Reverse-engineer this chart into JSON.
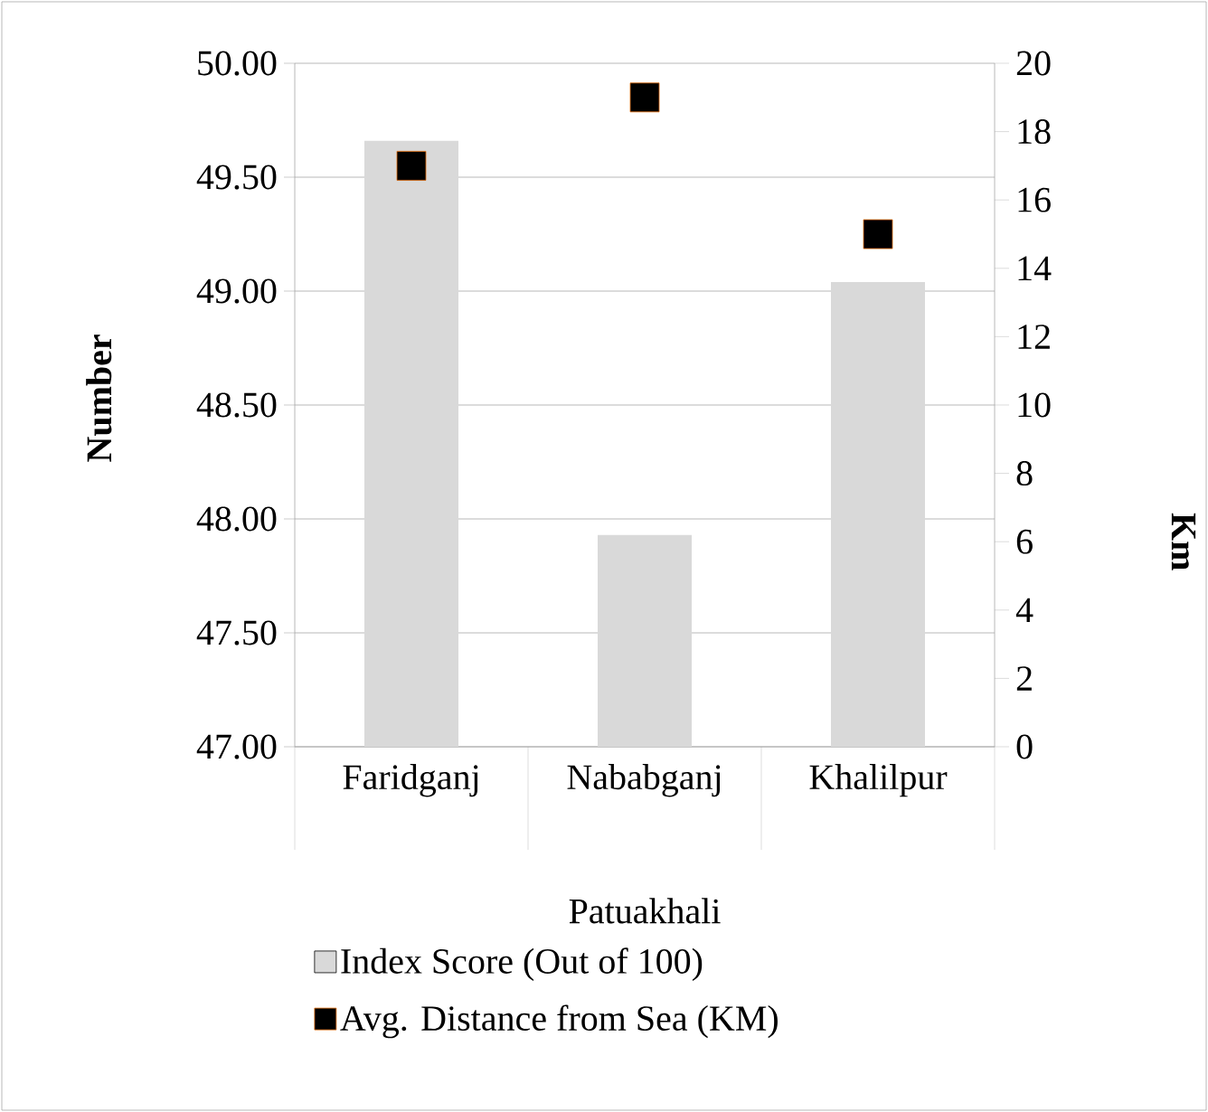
{
  "chart_data": {
    "type": "bar",
    "categories": [
      "Faridganj",
      "Nababganj",
      "Khalilpur"
    ],
    "xlabel": "Patuakhali",
    "ylabel": "Number",
    "y2label": "Km",
    "series": [
      {
        "name": "Index Score (Out of 100)",
        "color": "#d9d9d9",
        "values": [
          49.66,
          47.93,
          49.04
        ]
      },
      {
        "name": "Avg. Distance from Sea (KM)",
        "type": "scatter",
        "axis": "y2",
        "marker": "square",
        "color": "#000000",
        "values": [
          17,
          19,
          15
        ]
      }
    ],
    "ylim": [
      47,
      50
    ],
    "yticks": [
      {
        "value": 47,
        "label": "47.00"
      },
      {
        "value": 47.5,
        "label": "47.50"
      },
      {
        "value": 48,
        "label": "48.00"
      },
      {
        "value": 48.5,
        "label": "48.50"
      },
      {
        "value": 49,
        "label": "49.00"
      },
      {
        "value": 49.5,
        "label": "49.50"
      },
      {
        "value": 50,
        "label": "50.00"
      }
    ],
    "y2lim": [
      0,
      20
    ],
    "y2ticks": [
      0,
      2,
      4,
      6,
      8,
      10,
      12,
      14,
      16,
      18,
      20
    ],
    "grid": "y",
    "legend": "bottom"
  }
}
